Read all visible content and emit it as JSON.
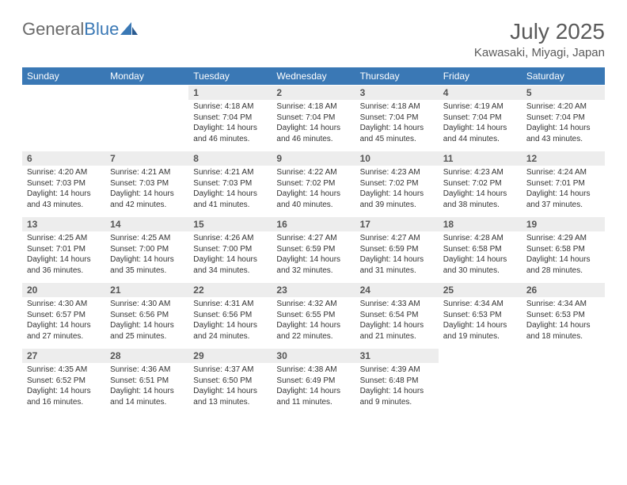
{
  "branding": {
    "text_a": "General",
    "text_b": "Blue"
  },
  "title": "July 2025",
  "location": "Kawasaki, Miyagi, Japan",
  "colors": {
    "header_bg": "#3a78b5",
    "header_fg": "#ffffff",
    "daynum_bg": "#ededed",
    "text": "#333333",
    "muted": "#5a5a5a"
  },
  "days_of_week": [
    "Sunday",
    "Monday",
    "Tuesday",
    "Wednesday",
    "Thursday",
    "Friday",
    "Saturday"
  ],
  "weeks": [
    [
      null,
      null,
      {
        "n": "1",
        "sunrise": "4:18 AM",
        "sunset": "7:04 PM",
        "daylight": "14 hours and 46 minutes."
      },
      {
        "n": "2",
        "sunrise": "4:18 AM",
        "sunset": "7:04 PM",
        "daylight": "14 hours and 46 minutes."
      },
      {
        "n": "3",
        "sunrise": "4:18 AM",
        "sunset": "7:04 PM",
        "daylight": "14 hours and 45 minutes."
      },
      {
        "n": "4",
        "sunrise": "4:19 AM",
        "sunset": "7:04 PM",
        "daylight": "14 hours and 44 minutes."
      },
      {
        "n": "5",
        "sunrise": "4:20 AM",
        "sunset": "7:04 PM",
        "daylight": "14 hours and 43 minutes."
      }
    ],
    [
      {
        "n": "6",
        "sunrise": "4:20 AM",
        "sunset": "7:03 PM",
        "daylight": "14 hours and 43 minutes."
      },
      {
        "n": "7",
        "sunrise": "4:21 AM",
        "sunset": "7:03 PM",
        "daylight": "14 hours and 42 minutes."
      },
      {
        "n": "8",
        "sunrise": "4:21 AM",
        "sunset": "7:03 PM",
        "daylight": "14 hours and 41 minutes."
      },
      {
        "n": "9",
        "sunrise": "4:22 AM",
        "sunset": "7:02 PM",
        "daylight": "14 hours and 40 minutes."
      },
      {
        "n": "10",
        "sunrise": "4:23 AM",
        "sunset": "7:02 PM",
        "daylight": "14 hours and 39 minutes."
      },
      {
        "n": "11",
        "sunrise": "4:23 AM",
        "sunset": "7:02 PM",
        "daylight": "14 hours and 38 minutes."
      },
      {
        "n": "12",
        "sunrise": "4:24 AM",
        "sunset": "7:01 PM",
        "daylight": "14 hours and 37 minutes."
      }
    ],
    [
      {
        "n": "13",
        "sunrise": "4:25 AM",
        "sunset": "7:01 PM",
        "daylight": "14 hours and 36 minutes."
      },
      {
        "n": "14",
        "sunrise": "4:25 AM",
        "sunset": "7:00 PM",
        "daylight": "14 hours and 35 minutes."
      },
      {
        "n": "15",
        "sunrise": "4:26 AM",
        "sunset": "7:00 PM",
        "daylight": "14 hours and 34 minutes."
      },
      {
        "n": "16",
        "sunrise": "4:27 AM",
        "sunset": "6:59 PM",
        "daylight": "14 hours and 32 minutes."
      },
      {
        "n": "17",
        "sunrise": "4:27 AM",
        "sunset": "6:59 PM",
        "daylight": "14 hours and 31 minutes."
      },
      {
        "n": "18",
        "sunrise": "4:28 AM",
        "sunset": "6:58 PM",
        "daylight": "14 hours and 30 minutes."
      },
      {
        "n": "19",
        "sunrise": "4:29 AM",
        "sunset": "6:58 PM",
        "daylight": "14 hours and 28 minutes."
      }
    ],
    [
      {
        "n": "20",
        "sunrise": "4:30 AM",
        "sunset": "6:57 PM",
        "daylight": "14 hours and 27 minutes."
      },
      {
        "n": "21",
        "sunrise": "4:30 AM",
        "sunset": "6:56 PM",
        "daylight": "14 hours and 25 minutes."
      },
      {
        "n": "22",
        "sunrise": "4:31 AM",
        "sunset": "6:56 PM",
        "daylight": "14 hours and 24 minutes."
      },
      {
        "n": "23",
        "sunrise": "4:32 AM",
        "sunset": "6:55 PM",
        "daylight": "14 hours and 22 minutes."
      },
      {
        "n": "24",
        "sunrise": "4:33 AM",
        "sunset": "6:54 PM",
        "daylight": "14 hours and 21 minutes."
      },
      {
        "n": "25",
        "sunrise": "4:34 AM",
        "sunset": "6:53 PM",
        "daylight": "14 hours and 19 minutes."
      },
      {
        "n": "26",
        "sunrise": "4:34 AM",
        "sunset": "6:53 PM",
        "daylight": "14 hours and 18 minutes."
      }
    ],
    [
      {
        "n": "27",
        "sunrise": "4:35 AM",
        "sunset": "6:52 PM",
        "daylight": "14 hours and 16 minutes."
      },
      {
        "n": "28",
        "sunrise": "4:36 AM",
        "sunset": "6:51 PM",
        "daylight": "14 hours and 14 minutes."
      },
      {
        "n": "29",
        "sunrise": "4:37 AM",
        "sunset": "6:50 PM",
        "daylight": "14 hours and 13 minutes."
      },
      {
        "n": "30",
        "sunrise": "4:38 AM",
        "sunset": "6:49 PM",
        "daylight": "14 hours and 11 minutes."
      },
      {
        "n": "31",
        "sunrise": "4:39 AM",
        "sunset": "6:48 PM",
        "daylight": "14 hours and 9 minutes."
      },
      null,
      null
    ]
  ],
  "labels": {
    "sunrise": "Sunrise:",
    "sunset": "Sunset:",
    "daylight": "Daylight:"
  }
}
